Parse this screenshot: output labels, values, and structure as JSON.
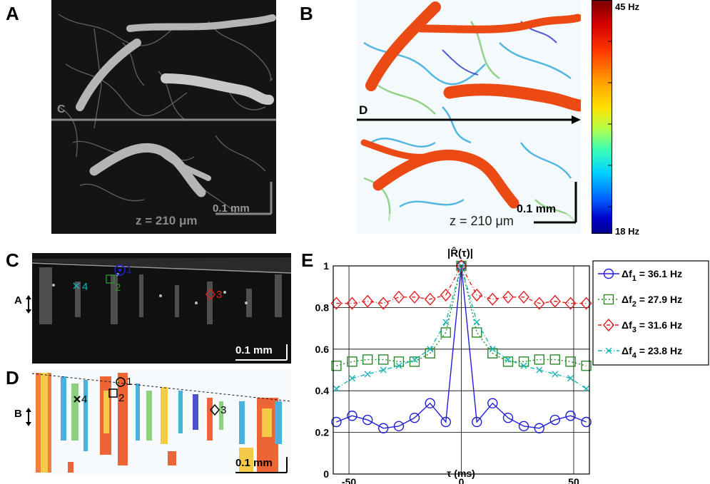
{
  "panels": {
    "A": {
      "letter": "A",
      "scale_bar": "0.1 mm",
      "depth": "z = 210 μm",
      "line_label": "C"
    },
    "B": {
      "letter": "B",
      "scale_bar": "0.1 mm",
      "depth": "z = 210 μm",
      "line_label": "D",
      "colorbar_max": "45 Hz",
      "colorbar_min": "18 Hz"
    },
    "C": {
      "letter": "C",
      "scale_bar": "0.1 mm",
      "depth_marker": "A",
      "markers": [
        {
          "label": "1",
          "color": "#1f1fd8"
        },
        {
          "label": "2",
          "color": "#2a8a2a"
        },
        {
          "label": "3",
          "color": "#e02020"
        },
        {
          "label": "4",
          "color": "#19b3b3"
        }
      ]
    },
    "D": {
      "letter": "D",
      "scale_bar": "0.1 mm",
      "depth_marker": "B",
      "markers": [
        {
          "label": "1"
        },
        {
          "label": "2"
        },
        {
          "label": "3"
        },
        {
          "label": "4"
        }
      ]
    },
    "E": {
      "letter": "E"
    }
  },
  "chart_data": {
    "type": "line",
    "title": "|R̂(τ)|",
    "xlabel": "τ (ms)",
    "ylabel": "",
    "xlim": [
      -57,
      57
    ],
    "ylim": [
      0,
      1
    ],
    "xticks": [
      -50,
      0,
      50
    ],
    "yticks": [
      0,
      0.2,
      0.4,
      0.6,
      0.8,
      1
    ],
    "ytick_labels": [
      "0",
      "0.2",
      "0.4",
      "0.6",
      "0.8",
      "1"
    ],
    "xtick_labels": [
      "-50",
      "0",
      "50"
    ],
    "grid": true,
    "legend_position": "right",
    "x": [
      -55.6,
      -48.6,
      -41.7,
      -34.7,
      -27.8,
      -20.8,
      -13.9,
      -6.9,
      0,
      6.9,
      13.9,
      20.8,
      27.8,
      34.7,
      41.7,
      48.6,
      55.6
    ],
    "series": [
      {
        "name": "Δf₁ = 36.1 Hz",
        "legend_main": "Δf",
        "legend_sub": "1",
        "legend_val": " = 36.1 Hz",
        "color": "#1f1fd8",
        "marker": "circle",
        "dash": "",
        "values": [
          0.25,
          0.28,
          0.26,
          0.22,
          0.23,
          0.27,
          0.34,
          0.25,
          1.0,
          0.25,
          0.34,
          0.27,
          0.23,
          0.22,
          0.26,
          0.28,
          0.25
        ]
      },
      {
        "name": "Δf₂ = 27.9 Hz",
        "legend_main": "Δf",
        "legend_sub": "2",
        "legend_val": " = 27.9 Hz",
        "color": "#2a8a2a",
        "marker": "square",
        "dash": "2,3",
        "values": [
          0.52,
          0.54,
          0.55,
          0.55,
          0.54,
          0.54,
          0.58,
          0.68,
          1.0,
          0.68,
          0.58,
          0.54,
          0.54,
          0.55,
          0.55,
          0.54,
          0.52
        ]
      },
      {
        "name": "Δf₃ = 31.6 Hz",
        "legend_main": "Δf",
        "legend_sub": "3",
        "legend_val": " = 31.6 Hz",
        "color": "#e02020",
        "marker": "diamond",
        "dash": "5,3,1,3",
        "values": [
          0.82,
          0.82,
          0.83,
          0.82,
          0.85,
          0.85,
          0.84,
          0.86,
          1.0,
          0.86,
          0.84,
          0.85,
          0.85,
          0.82,
          0.83,
          0.82,
          0.82
        ]
      },
      {
        "name": "Δf₄ = 23.8 Hz",
        "legend_main": "Δf",
        "legend_sub": "4",
        "legend_val": " = 23.8 Hz",
        "color": "#19b3b3",
        "marker": "x",
        "dash": "6,3,1,3",
        "values": [
          0.41,
          0.46,
          0.48,
          0.5,
          0.52,
          0.55,
          0.6,
          0.73,
          1.0,
          0.73,
          0.6,
          0.55,
          0.52,
          0.5,
          0.48,
          0.46,
          0.41
        ]
      }
    ]
  }
}
